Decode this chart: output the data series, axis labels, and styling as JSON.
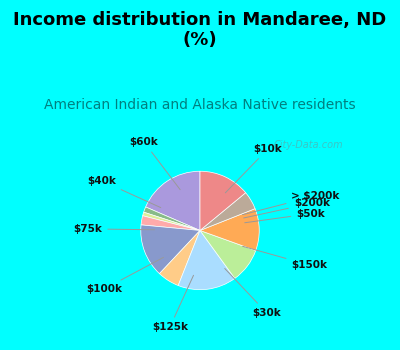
{
  "title": "Income distribution in Mandaree, ND\n(%)",
  "subtitle": "American Indian and Alaska Native residents",
  "title_color": "#000000",
  "subtitle_color": "#008080",
  "bg_top": "#00ffff",
  "chart_bg": "#ddf0e8",
  "watermark": "City-Data.com",
  "labels": [
    "$10k",
    "> $200k",
    "$200k",
    "$50k",
    "$150k",
    "$30k",
    "$125k",
    "$100k",
    "$75k",
    "$40k",
    "$60k"
  ],
  "sizes": [
    18.5,
    1.5,
    1.0,
    2.5,
    14.5,
    6.0,
    16.0,
    9.5,
    11.5,
    5.0,
    14.0
  ],
  "colors": [
    "#aa99dd",
    "#88bb88",
    "#ddee99",
    "#ffaaaa",
    "#8899cc",
    "#ffcc88",
    "#aaddff",
    "#bbee99",
    "#ffaa55",
    "#bbaa99",
    "#ee8888"
  ],
  "startangle": 90,
  "label_fontsize": 7.5,
  "title_fontsize": 13,
  "subtitle_fontsize": 10
}
